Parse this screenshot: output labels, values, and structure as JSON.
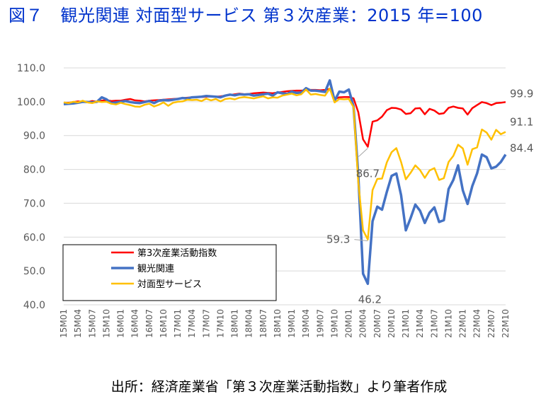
{
  "title": "図７　観光関連 対面型サービス 第３次産業：2015 年=100",
  "title_color": "#0033cc",
  "source_note": "出所：経済産業省「第３次産業活動指数」より筆者作成",
  "chart_data": {
    "type": "line",
    "ylim": [
      40,
      110
    ],
    "yticks": [
      "40.0",
      "50.0",
      "60.0",
      "70.0",
      "80.0",
      "90.0",
      "100.0",
      "110.0"
    ],
    "grid": true,
    "legend_position": "bottom-left",
    "x_tick_labels": [
      "15M01",
      "15M04",
      "15M07",
      "15M10",
      "16M01",
      "16M04",
      "16M07",
      "16M10",
      "17M01",
      "17M04",
      "17M07",
      "17M10",
      "18M01",
      "18M04",
      "18M07",
      "18M10",
      "19M01",
      "19M04",
      "19M07",
      "19M10",
      "20M01",
      "20M04",
      "20M07",
      "20M10",
      "21M01",
      "21M04",
      "21M07",
      "21M10",
      "22M01",
      "22M04",
      "22M07",
      "22M10"
    ],
    "x": [
      "15M01",
      "15M02",
      "15M03",
      "15M04",
      "15M05",
      "15M06",
      "15M07",
      "15M08",
      "15M09",
      "15M10",
      "15M11",
      "15M12",
      "16M01",
      "16M02",
      "16M03",
      "16M04",
      "16M05",
      "16M06",
      "16M07",
      "16M08",
      "16M09",
      "16M10",
      "16M11",
      "16M12",
      "17M01",
      "17M02",
      "17M03",
      "17M04",
      "17M05",
      "17M06",
      "17M07",
      "17M08",
      "17M09",
      "17M10",
      "17M11",
      "17M12",
      "18M01",
      "18M02",
      "18M03",
      "18M04",
      "18M05",
      "18M06",
      "18M07",
      "18M08",
      "18M09",
      "18M10",
      "18M11",
      "18M12",
      "19M01",
      "19M02",
      "19M03",
      "19M04",
      "19M05",
      "19M06",
      "19M07",
      "19M08",
      "19M09",
      "19M10",
      "19M11",
      "19M12",
      "20M01",
      "20M02",
      "20M03",
      "20M04",
      "20M05",
      "20M06",
      "20M07",
      "20M08",
      "20M09",
      "20M10",
      "20M11",
      "20M12",
      "21M01",
      "21M02",
      "21M03",
      "21M04",
      "21M05",
      "21M06",
      "21M07",
      "21M08",
      "21M09",
      "21M10",
      "21M11",
      "21M12",
      "22M01",
      "22M02",
      "22M03",
      "22M04",
      "22M05",
      "22M06",
      "22M07",
      "22M08",
      "22M09",
      "22M10"
    ],
    "series": [
      {
        "name": "第3次産業活動指数",
        "color": "#ff0000",
        "values": [
          99.6,
          99.7,
          99.9,
          100.1,
          100.0,
          99.9,
          100.2,
          100.0,
          100.3,
          100.5,
          100.2,
          100.3,
          100.3,
          100.6,
          100.8,
          100.4,
          100.3,
          100.1,
          100.3,
          100.4,
          100.5,
          100.6,
          100.7,
          100.8,
          100.9,
          101.1,
          101.2,
          101.3,
          101.4,
          101.4,
          101.5,
          101.6,
          101.5,
          101.6,
          101.8,
          102.0,
          102.2,
          102.4,
          102.2,
          102.3,
          102.5,
          102.6,
          102.7,
          102.6,
          102.5,
          102.7,
          102.9,
          103.1,
          103.2,
          103.3,
          103.3,
          103.4,
          103.5,
          103.5,
          103.4,
          103.5,
          103.8,
          100.8,
          101.3,
          101.4,
          101.4,
          101.0,
          96.9,
          88.9,
          86.7,
          94.1,
          94.5,
          95.6,
          97.5,
          98.2,
          98.1,
          97.7,
          96.4,
          96.6,
          98.0,
          98.1,
          96.3,
          97.9,
          97.4,
          96.4,
          96.6,
          98.2,
          98.6,
          98.2,
          98.0,
          96.2,
          98.1,
          99.0,
          99.9,
          99.6,
          99.0,
          99.6,
          99.7,
          99.9
        ]
      },
      {
        "name": "観光関連",
        "color": "#4472c4",
        "values": [
          99.3,
          99.4,
          99.5,
          99.7,
          100.0,
          99.9,
          99.8,
          100.0,
          101.3,
          100.7,
          99.6,
          99.8,
          100.0,
          100.2,
          99.9,
          99.7,
          99.6,
          99.9,
          100.2,
          99.6,
          100.3,
          100.5,
          100.4,
          100.6,
          100.8,
          101.1,
          101.0,
          101.3,
          101.4,
          101.5,
          101.7,
          101.6,
          101.5,
          101.3,
          101.8,
          102.1,
          101.9,
          102.2,
          102.1,
          102.2,
          101.8,
          102.0,
          102.2,
          102.4,
          101.8,
          102.8,
          102.5,
          102.3,
          103.0,
          102.6,
          102.7,
          104.0,
          103.3,
          103.3,
          103.1,
          102.9,
          106.3,
          100.3,
          103.0,
          102.8,
          103.6,
          98.6,
          78.2,
          49.2,
          46.2,
          64.7,
          69.0,
          68.1,
          73.4,
          78.1,
          78.8,
          72.4,
          62.0,
          65.6,
          69.6,
          67.8,
          64.2,
          67.2,
          68.8,
          64.5,
          65.0,
          74.2,
          76.9,
          81.2,
          73.8,
          69.8,
          75.1,
          78.8,
          84.4,
          83.6,
          80.3,
          80.8,
          82.2,
          84.4
        ]
      },
      {
        "name": "対面型サービス",
        "color": "#ffc000",
        "values": [
          99.8,
          99.6,
          100.0,
          99.8,
          100.3,
          99.8,
          99.6,
          100.1,
          99.9,
          100.0,
          99.4,
          99.2,
          99.7,
          99.3,
          99.0,
          98.6,
          98.5,
          99.1,
          99.4,
          98.6,
          99.1,
          99.8,
          98.8,
          99.7,
          100.0,
          100.1,
          100.6,
          100.5,
          100.6,
          100.2,
          100.9,
          100.4,
          100.8,
          100.1,
          100.8,
          101.0,
          100.7,
          101.2,
          101.4,
          101.2,
          101.0,
          101.3,
          101.6,
          101.0,
          101.3,
          101.2,
          101.8,
          102.1,
          102.4,
          101.9,
          102.2,
          103.6,
          102.1,
          102.3,
          102.0,
          101.8,
          103.9,
          99.8,
          100.8,
          100.7,
          100.8,
          98.4,
          76.2,
          62.0,
          59.3,
          73.9,
          77.2,
          77.3,
          82.1,
          85.1,
          86.3,
          82.2,
          77.1,
          79.0,
          81.2,
          79.8,
          77.5,
          79.7,
          80.4,
          76.9,
          77.4,
          82.2,
          84.0,
          87.3,
          86.2,
          81.4,
          86.0,
          86.5,
          91.8,
          90.9,
          88.8,
          91.7,
          90.4,
          91.1
        ]
      }
    ],
    "callouts": [
      {
        "label": "99.9",
        "series": 0,
        "index": 93
      },
      {
        "label": "91.1",
        "series": 2,
        "index": 93
      },
      {
        "label": "84.4",
        "series": 1,
        "index": 93
      },
      {
        "label": "86.7",
        "series": 0,
        "index": 64
      },
      {
        "label": "59.3",
        "series": 2,
        "index": 64
      },
      {
        "label": "46.2",
        "series": 1,
        "index": 64
      }
    ]
  }
}
